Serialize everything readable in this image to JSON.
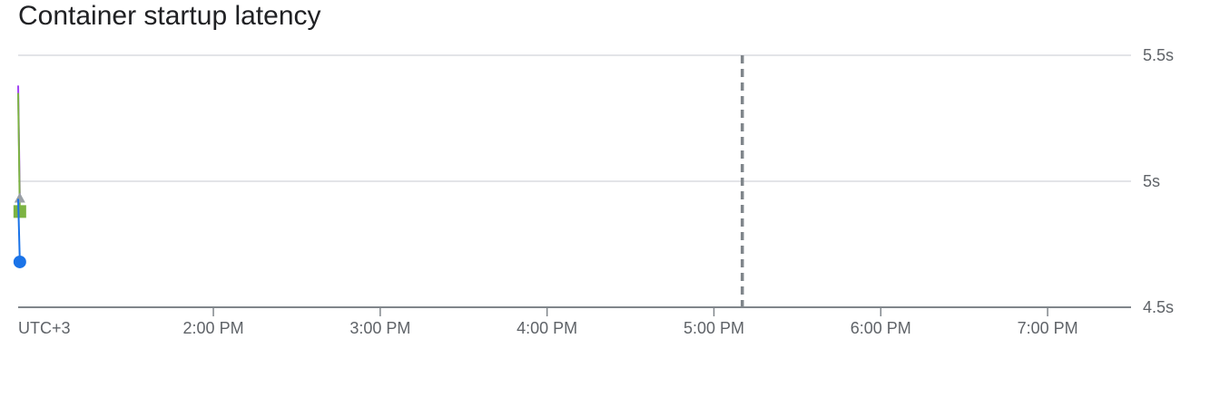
{
  "chart_data": {
    "type": "line",
    "title": "Container startup latency",
    "timezone_label": "UTC+3",
    "x_tick_labels": [
      "2:00 PM",
      "3:00 PM",
      "4:00 PM",
      "5:00 PM",
      "6:00 PM",
      "7:00 PM"
    ],
    "x_ticks_hours": [
      14,
      15,
      16,
      17,
      18,
      19
    ],
    "xlim_hours": [
      12.83,
      19.5
    ],
    "y_tick_labels": [
      "5.5s",
      "5s",
      "4.5s"
    ],
    "y_ticks": [
      5.5,
      5.0,
      4.5
    ],
    "ylim": [
      4.5,
      5.5
    ],
    "grid": true,
    "marker_line_hour": 17.17,
    "series": [
      {
        "color": "#a142f4",
        "marker": "none",
        "points": [
          {
            "x": 12.83,
            "y": 5.38
          },
          {
            "x": 12.84,
            "y": 4.93
          }
        ]
      },
      {
        "color": "#7cb342",
        "marker": "square",
        "points": [
          {
            "x": 12.83,
            "y": 5.35
          },
          {
            "x": 12.84,
            "y": 4.88
          }
        ]
      },
      {
        "color": "#9aa0a6",
        "marker": "triangle",
        "points": [
          {
            "x": 12.84,
            "y": 4.93
          }
        ]
      },
      {
        "color": "#1a73e8",
        "marker": "circle",
        "points": [
          {
            "x": 12.83,
            "y": 4.93
          },
          {
            "x": 12.84,
            "y": 4.68
          }
        ]
      }
    ]
  }
}
